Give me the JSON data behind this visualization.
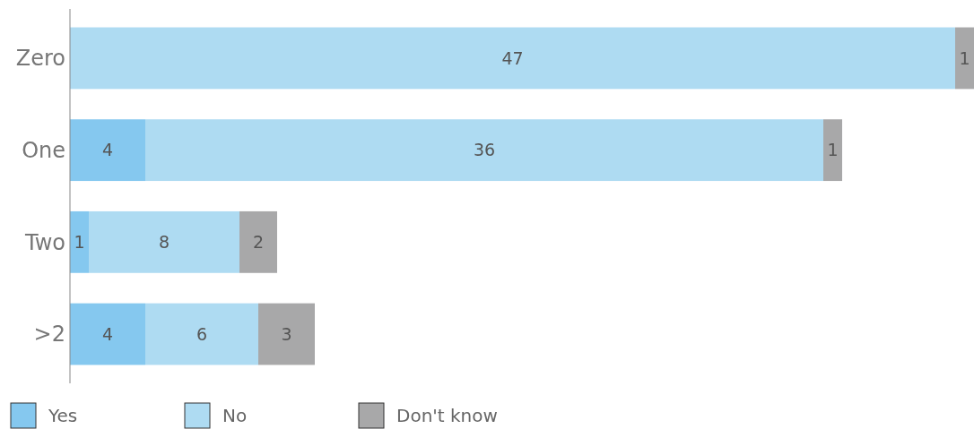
{
  "chart_data": {
    "type": "bar",
    "orientation": "horizontal",
    "stacked": true,
    "categories": [
      "Zero",
      "One",
      "Two",
      ">2"
    ],
    "series": [
      {
        "name": "Yes",
        "color": "#85c8ef",
        "values": [
          null,
          4,
          1,
          4
        ]
      },
      {
        "name": "No",
        "color": "#aedbf2",
        "values": [
          47,
          36,
          8,
          6
        ]
      },
      {
        "name": "Don't know",
        "color": "#a8a8a9",
        "values": [
          1,
          1,
          2,
          3
        ]
      }
    ],
    "data_labels": true,
    "legend": "bottom"
  }
}
